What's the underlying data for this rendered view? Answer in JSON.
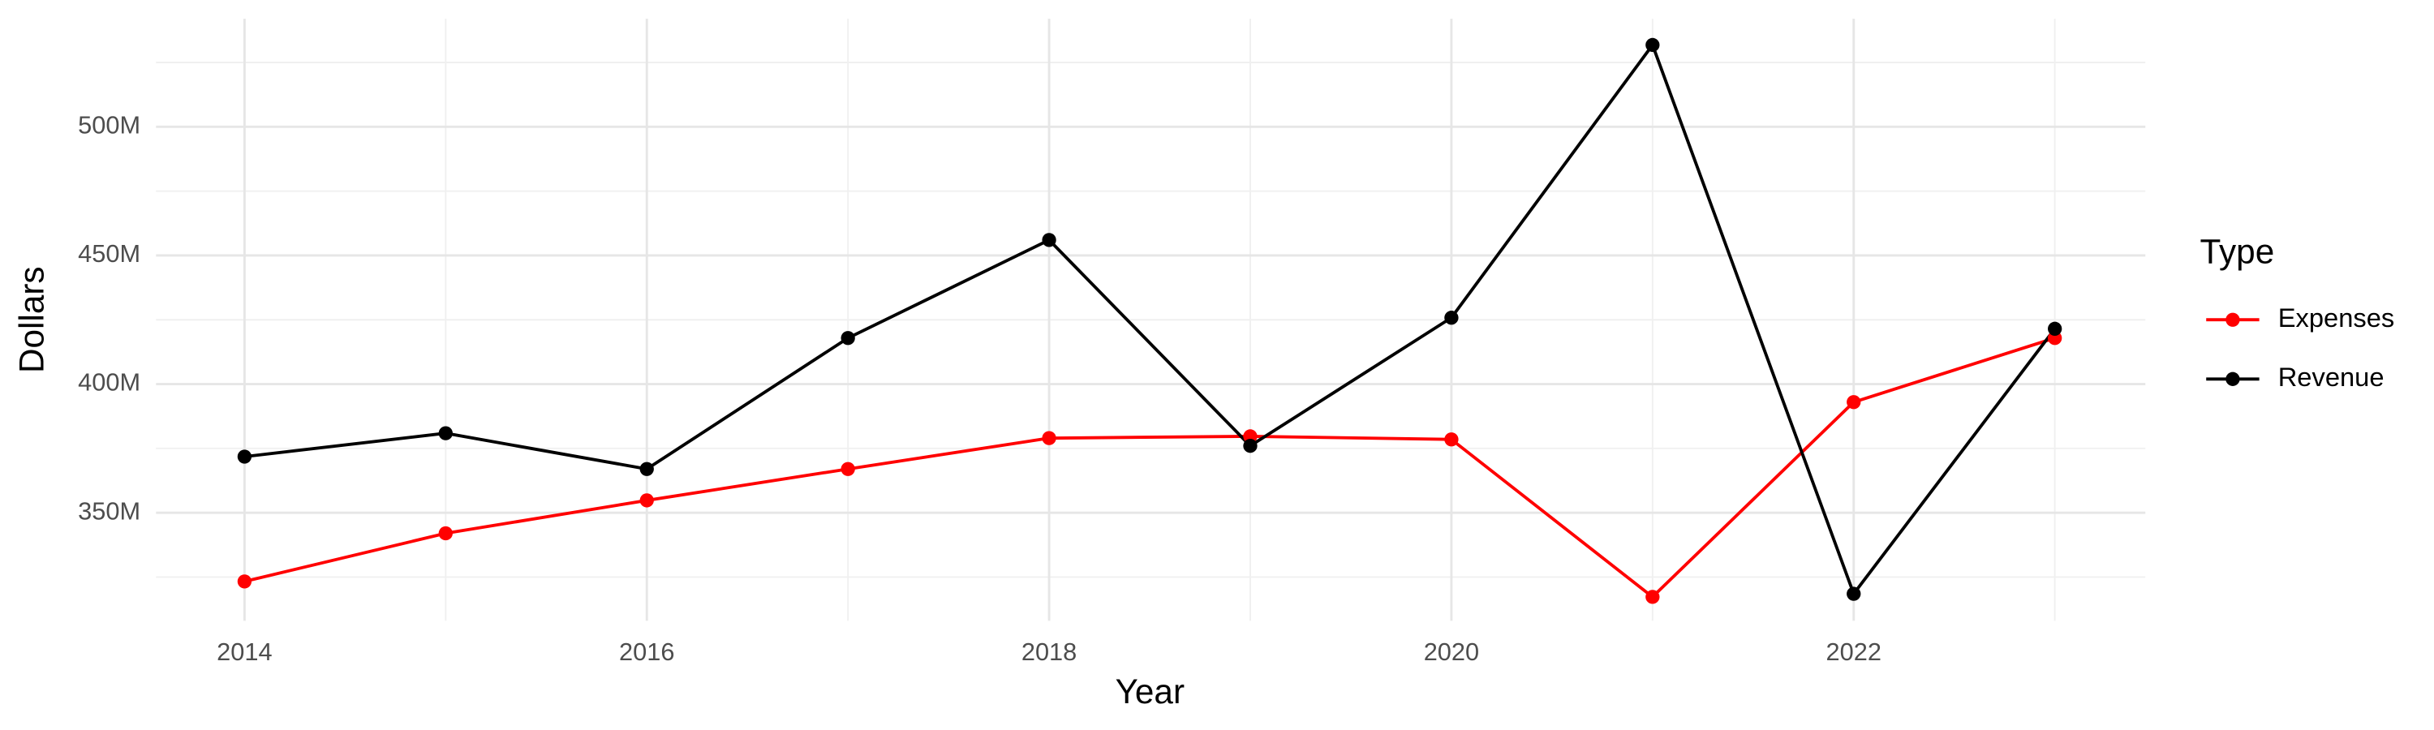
{
  "chart_data": {
    "type": "line",
    "x_label": "Year",
    "y_label": "Dollars",
    "legend_title": "Type",
    "legend_position": "right",
    "grid": true,
    "x": [
      2014,
      2015,
      2016,
      2017,
      2018,
      2019,
      2020,
      2021,
      2022,
      2023
    ],
    "xlim": [
      2013.56,
      2023.45
    ],
    "xticks": [
      2014,
      2016,
      2018,
      2020,
      2022
    ],
    "ylim": [
      308000000,
      542000000
    ],
    "yticks": [
      {
        "value": 350000000,
        "label": "350M"
      },
      {
        "value": 400000000,
        "label": "400M"
      },
      {
        "value": 450000000,
        "label": "450M"
      },
      {
        "value": 500000000,
        "label": "500M"
      }
    ],
    "series": [
      {
        "name": "Expenses",
        "color": "#ff0000",
        "values": [
          323300000,
          342000000,
          354800000,
          367000000,
          379000000,
          379700000,
          378500000,
          317300000,
          393000000,
          417900000
        ]
      },
      {
        "name": "Revenue",
        "color": "#000000",
        "values": [
          371800000,
          380900000,
          367000000,
          417900000,
          456000000,
          376000000,
          425800000,
          531800000,
          318500000,
          421500000
        ]
      }
    ]
  }
}
